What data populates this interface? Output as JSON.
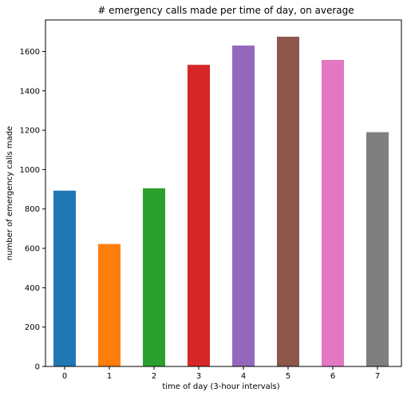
{
  "chart_data": {
    "type": "bar",
    "title": "# emergency calls made per time of day, on average",
    "xlabel": "time of day (3-hour intervals)",
    "ylabel": "number of emergency calls made",
    "categories": [
      "0",
      "1",
      "2",
      "3",
      "4",
      "5",
      "6",
      "7"
    ],
    "values": [
      893,
      622,
      905,
      1532,
      1630,
      1675,
      1557,
      1190
    ],
    "colors": [
      "#1f77b4",
      "#ff7f0e",
      "#2ca02c",
      "#d62728",
      "#9467bd",
      "#8c564b",
      "#e377c2",
      "#7f7f7f"
    ],
    "ylim": [
      0,
      1760
    ],
    "yticks": [
      0,
      200,
      400,
      600,
      800,
      1000,
      1200,
      1400,
      1600
    ],
    "grid": false,
    "legend": "none"
  }
}
